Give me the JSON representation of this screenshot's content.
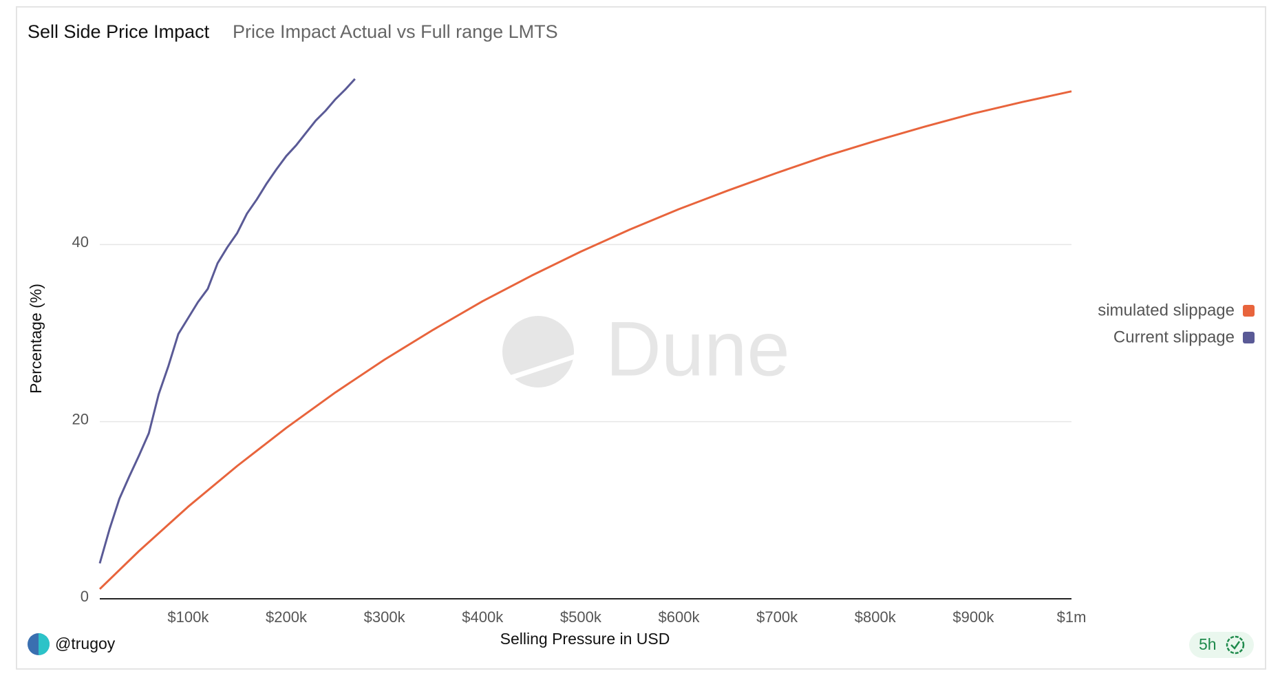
{
  "chart_data": {
    "type": "line",
    "title": "Sell Side Price Impact",
    "subtitle": "Price Impact Actual vs Full range LMTS",
    "x_label": "Selling Pressure in USD",
    "y_label": "Percentage (%)",
    "watermark": "Dune",
    "author": "@trugoy",
    "age": "5h",
    "xlim": [
      10000,
      1000000
    ],
    "ylim": [
      0,
      60
    ],
    "xticks": [
      {
        "value": 100000,
        "label": "$100k"
      },
      {
        "value": 200000,
        "label": "$200k"
      },
      {
        "value": 300000,
        "label": "$300k"
      },
      {
        "value": 400000,
        "label": "$400k"
      },
      {
        "value": 500000,
        "label": "$500k"
      },
      {
        "value": 600000,
        "label": "$600k"
      },
      {
        "value": 700000,
        "label": "$700k"
      },
      {
        "value": 800000,
        "label": "$800k"
      },
      {
        "value": 900000,
        "label": "$900k"
      },
      {
        "value": 1000000,
        "label": "$1m"
      }
    ],
    "yticks": [
      0,
      20,
      40
    ],
    "grid": true,
    "legend": "right",
    "series": [
      {
        "name": "simulated slippage",
        "color": "#e8643c",
        "x": [
          10000,
          50000,
          100000,
          150000,
          200000,
          250000,
          300000,
          350000,
          400000,
          450000,
          500000,
          550000,
          600000,
          650000,
          700000,
          750000,
          800000,
          850000,
          900000,
          950000,
          1000000
        ],
        "values": [
          1.1,
          5.4,
          10.4,
          15.0,
          19.3,
          23.3,
          27.0,
          30.4,
          33.6,
          36.5,
          39.2,
          41.7,
          44.0,
          46.1,
          48.1,
          50.0,
          51.7,
          53.3,
          54.8,
          56.1,
          57.3
        ]
      },
      {
        "name": "Current slippage",
        "color": "#5a5a96",
        "x": [
          10000,
          20000,
          30000,
          40000,
          50000,
          60000,
          70000,
          80000,
          90000,
          100000,
          110000,
          120000,
          130000,
          140000,
          150000,
          160000,
          170000,
          180000,
          190000,
          200000,
          210000,
          220000,
          230000,
          240000,
          250000,
          260000,
          270000
        ],
        "values": [
          4.0,
          7.9,
          11.3,
          13.8,
          16.2,
          18.7,
          23.1,
          26.3,
          29.9,
          31.7,
          33.5,
          35.0,
          37.9,
          39.7,
          41.3,
          43.5,
          45.1,
          46.9,
          48.5,
          50.0,
          51.2,
          52.6,
          54.0,
          55.1,
          56.4,
          57.5,
          58.7
        ]
      }
    ]
  }
}
